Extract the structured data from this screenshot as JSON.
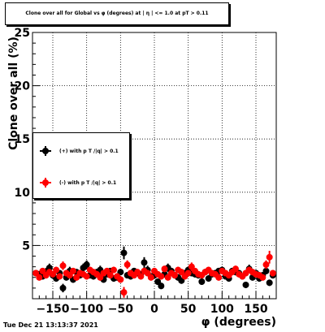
{
  "title": "Clone  over all for Global vs φ (degrees) at | η | <= 1.0 at pT > 0.11",
  "timestamp": "Tue Dec 21 13:13:37 2021",
  "chart_data": {
    "type": "scatter",
    "xlabel": "φ (degrees)",
    "ylabel": "Clone  over all (%)",
    "xlim": [
      -180,
      180
    ],
    "ylim": [
      0,
      25
    ],
    "xticks": [
      -150,
      -100,
      -50,
      0,
      50,
      100,
      150
    ],
    "xtick_labels": [
      "−150",
      "−100",
      "−50",
      "0",
      "50",
      "100",
      "150"
    ],
    "yticks": [
      5,
      10,
      15,
      20,
      25
    ],
    "ytick_labels": [
      "5",
      "10",
      "15",
      "20",
      "25"
    ],
    "grid": true,
    "legend_position": "left",
    "series": [
      {
        "name": "(+) with p T /|q| > 0.1",
        "color": "#000000",
        "x": [
          -175,
          -170,
          -165,
          -160,
          -155,
          -150,
          -145,
          -140,
          -135,
          -130,
          -125,
          -120,
          -115,
          -110,
          -105,
          -100,
          -95,
          -90,
          -85,
          -80,
          -75,
          -70,
          -65,
          -60,
          -55,
          -50,
          -45,
          -40,
          -35,
          -30,
          -25,
          -20,
          -15,
          -10,
          -5,
          0,
          5,
          10,
          15,
          20,
          25,
          30,
          35,
          40,
          45,
          50,
          55,
          60,
          65,
          70,
          75,
          80,
          85,
          90,
          95,
          100,
          105,
          110,
          115,
          120,
          125,
          130,
          135,
          140,
          145,
          150,
          155,
          160,
          165,
          170,
          175
        ],
        "y": [
          2.4,
          2.3,
          2.1,
          2.5,
          2.9,
          2.2,
          1.9,
          2.4,
          1.0,
          2.0,
          2.6,
          1.8,
          2.5,
          2.2,
          2.9,
          3.2,
          2.2,
          2.1,
          2.5,
          2.7,
          1.8,
          2.3,
          2.6,
          1.9,
          2.0,
          2.5,
          4.3,
          2.2,
          2.1,
          2.6,
          2.4,
          2.3,
          3.4,
          2.7,
          2.1,
          2.2,
          1.6,
          1.2,
          2.3,
          2.9,
          2.6,
          2.2,
          2.0,
          1.7,
          2.4,
          2.7,
          2.4,
          2.3,
          2.2,
          1.6,
          2.5,
          1.9,
          2.3,
          2.4,
          2.6,
          2.7,
          2.1,
          1.9,
          2.6,
          2.5,
          2.4,
          2.1,
          1.3,
          2.8,
          2.0,
          2.4,
          1.9,
          2.2,
          2.6,
          1.5,
          2.2
        ],
        "errors": [
          0.3,
          0.3,
          0.3,
          0.4,
          0.4,
          0.3,
          0.3,
          0.3,
          0.4,
          0.3,
          0.4,
          0.3,
          0.3,
          0.3,
          0.4,
          0.4,
          0.3,
          0.3,
          0.3,
          0.4,
          0.3,
          0.3,
          0.3,
          0.3,
          0.3,
          0.3,
          0.6,
          0.3,
          0.3,
          0.3,
          0.3,
          0.3,
          0.5,
          0.4,
          0.3,
          0.3,
          0.3,
          0.3,
          0.3,
          0.4,
          0.3,
          0.3,
          0.3,
          0.3,
          0.3,
          0.3,
          0.3,
          0.3,
          0.3,
          0.3,
          0.3,
          0.3,
          0.3,
          0.3,
          0.3,
          0.3,
          0.3,
          0.3,
          0.3,
          0.3,
          0.3,
          0.3,
          0.3,
          0.4,
          0.3,
          0.3,
          0.3,
          0.3,
          0.3,
          0.3,
          0.3
        ]
      },
      {
        "name": "(-) with p T /|q| > 0.1",
        "color": "#ff0000",
        "x": [
          -175,
          -170,
          -165,
          -160,
          -155,
          -150,
          -145,
          -140,
          -135,
          -130,
          -125,
          -120,
          -115,
          -110,
          -105,
          -100,
          -95,
          -90,
          -85,
          -80,
          -75,
          -70,
          -65,
          -60,
          -55,
          -50,
          -45,
          -40,
          -35,
          -30,
          -25,
          -20,
          -15,
          -10,
          -5,
          0,
          5,
          10,
          15,
          20,
          25,
          30,
          35,
          40,
          45,
          50,
          55,
          60,
          65,
          70,
          75,
          80,
          85,
          90,
          95,
          100,
          105,
          110,
          115,
          120,
          125,
          130,
          135,
          140,
          145,
          150,
          155,
          160,
          165,
          170,
          175
        ],
        "y": [
          2.4,
          2.0,
          2.6,
          2.2,
          2.5,
          2.3,
          2.7,
          2.1,
          3.1,
          2.4,
          2.2,
          2.6,
          2.0,
          2.4,
          2.3,
          2.1,
          2.7,
          2.5,
          2.3,
          2.0,
          2.4,
          2.6,
          2.2,
          2.7,
          2.1,
          1.8,
          0.6,
          3.2,
          2.4,
          2.2,
          2.5,
          2.1,
          2.6,
          2.4,
          2.0,
          2.6,
          2.3,
          2.1,
          2.8,
          2.0,
          2.4,
          2.2,
          2.7,
          2.5,
          2.1,
          2.4,
          3.0,
          2.6,
          2.3,
          2.2,
          2.5,
          2.7,
          2.4,
          2.3,
          2.0,
          2.6,
          2.4,
          2.2,
          2.5,
          2.8,
          2.3,
          2.1,
          2.4,
          2.7,
          2.5,
          2.3,
          2.2,
          2.0,
          3.2,
          3.9,
          2.4
        ],
        "errors": [
          0.3,
          0.3,
          0.3,
          0.3,
          0.3,
          0.3,
          0.3,
          0.3,
          0.4,
          0.3,
          0.3,
          0.3,
          0.3,
          0.3,
          0.3,
          0.3,
          0.3,
          0.3,
          0.3,
          0.3,
          0.3,
          0.3,
          0.3,
          0.3,
          0.3,
          0.3,
          0.5,
          0.4,
          0.3,
          0.3,
          0.3,
          0.3,
          0.3,
          0.3,
          0.3,
          0.3,
          0.3,
          0.3,
          0.3,
          0.3,
          0.3,
          0.3,
          0.3,
          0.3,
          0.3,
          0.3,
          0.4,
          0.3,
          0.3,
          0.3,
          0.3,
          0.3,
          0.3,
          0.3,
          0.3,
          0.3,
          0.3,
          0.3,
          0.3,
          0.3,
          0.3,
          0.3,
          0.3,
          0.3,
          0.3,
          0.3,
          0.3,
          0.3,
          0.4,
          0.6,
          0.3
        ]
      }
    ]
  }
}
